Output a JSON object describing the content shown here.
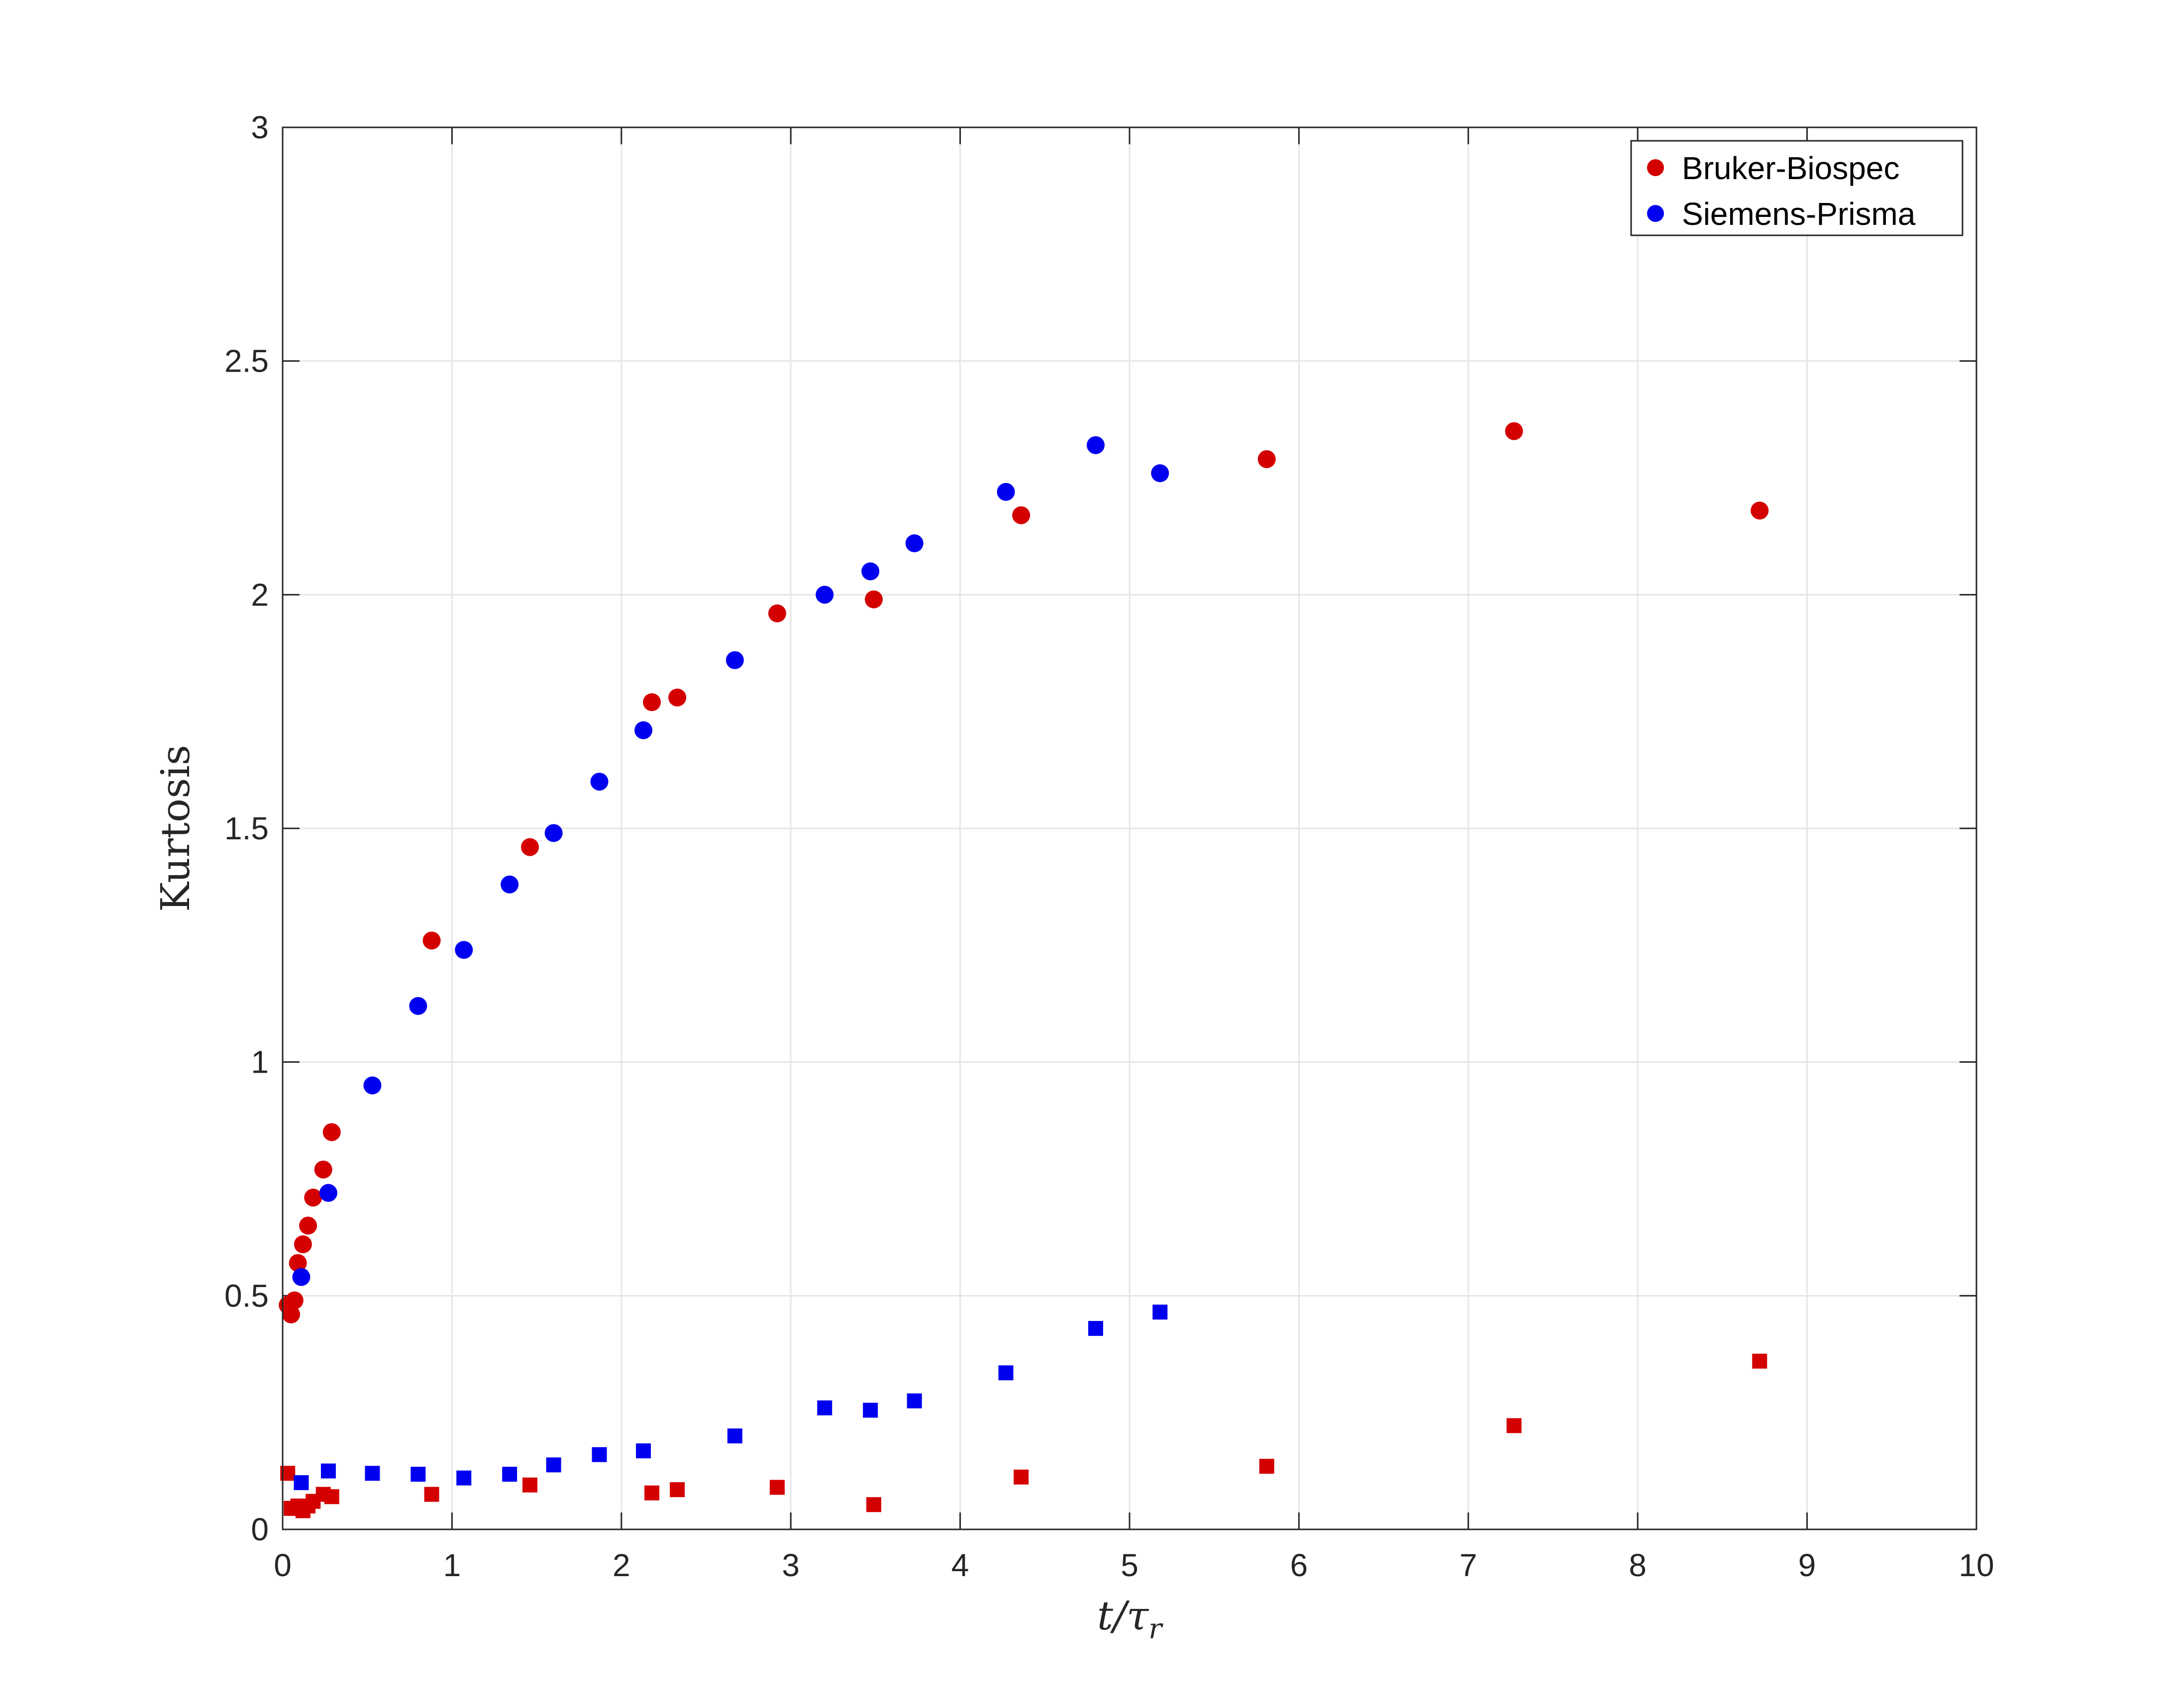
{
  "chart_data": {
    "type": "scatter",
    "xlabel": "t/τ",
    "xlabel_sub": "r",
    "ylabel": "Kurtosis",
    "xlim": [
      0,
      10
    ],
    "ylim": [
      0,
      3
    ],
    "xticks": [
      "0",
      "1",
      "2",
      "3",
      "4",
      "5",
      "6",
      "7",
      "8",
      "9",
      "10"
    ],
    "yticks": [
      "0",
      "0.5",
      "1",
      "1.5",
      "2",
      "2.5",
      "3"
    ],
    "grid": true,
    "legend_position": "top-right",
    "legend": [
      {
        "label": "Bruker-Biospec",
        "color": "#d40000",
        "marker": "circle"
      },
      {
        "label": "Siemens-Prisma",
        "color": "#0000f0",
        "marker": "circle"
      }
    ],
    "series": [
      {
        "name": "Bruker-Biospec",
        "marker": "circle",
        "color": "#d40000",
        "x": [
          0.03,
          0.05,
          0.07,
          0.09,
          0.12,
          0.15,
          0.18,
          0.24,
          0.29,
          0.88,
          1.46,
          2.18,
          2.33,
          2.92,
          3.49,
          4.36,
          5.81,
          7.27,
          8.72
        ],
        "y": [
          0.48,
          0.46,
          0.49,
          0.57,
          0.61,
          0.65,
          0.71,
          0.77,
          0.85,
          1.26,
          1.46,
          1.77,
          1.78,
          1.96,
          1.99,
          2.17,
          2.29,
          2.35,
          2.18
        ]
      },
      {
        "name": "Siemens-Prisma",
        "marker": "circle",
        "color": "#0000f0",
        "x": [
          0.11,
          0.27,
          0.53,
          0.8,
          1.07,
          1.34,
          1.6,
          1.87,
          2.13,
          2.67,
          3.2,
          3.47,
          3.73,
          4.27,
          4.8,
          5.18
        ],
        "y": [
          0.54,
          0.72,
          0.95,
          1.12,
          1.24,
          1.38,
          1.49,
          1.6,
          1.71,
          1.86,
          2.0,
          2.05,
          2.11,
          2.22,
          2.32,
          2.26
        ]
      },
      {
        "marker": "square",
        "color": "#d40000",
        "x": [
          0.03,
          0.05,
          0.07,
          0.09,
          0.12,
          0.15,
          0.18,
          0.24,
          0.29,
          0.88,
          1.46,
          2.18,
          2.33,
          2.92,
          3.49,
          4.36,
          5.81,
          7.27,
          8.72
        ],
        "y": [
          0.12,
          0.045,
          0.045,
          0.05,
          0.04,
          0.05,
          0.06,
          0.075,
          0.07,
          0.075,
          0.095,
          0.078,
          0.085,
          0.09,
          0.053,
          0.112,
          0.135,
          0.222,
          0.36
        ]
      },
      {
        "marker": "square",
        "color": "#0000f0",
        "x": [
          0.11,
          0.27,
          0.53,
          0.8,
          1.07,
          1.34,
          1.6,
          1.87,
          2.13,
          2.67,
          3.2,
          3.47,
          3.73,
          4.27,
          4.8,
          5.18
        ],
        "y": [
          0.1,
          0.125,
          0.12,
          0.118,
          0.11,
          0.118,
          0.138,
          0.16,
          0.168,
          0.2,
          0.26,
          0.255,
          0.275,
          0.335,
          0.43,
          0.465
        ]
      }
    ]
  }
}
